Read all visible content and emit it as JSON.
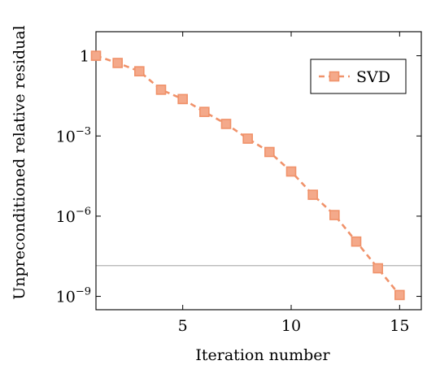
{
  "chart_data": {
    "type": "line",
    "title": "",
    "xlabel": "Iteration number",
    "ylabel": "Unpreconditioned relative residual",
    "xlim": [
      1,
      16
    ],
    "ylim_log10": [
      -9.5,
      0.9
    ],
    "yscale": "log",
    "x_ticks": [
      5,
      10,
      15
    ],
    "x_tick_labels": [
      "5",
      "10",
      "15"
    ],
    "y_ticks_log10": [
      0,
      -3,
      -6,
      -9
    ],
    "y_tick_labels": [
      {
        "base": "1",
        "exp": ""
      },
      {
        "base": "10",
        "exp": "−3"
      },
      {
        "base": "10",
        "exp": "−6"
      },
      {
        "base": "10",
        "exp": "−9"
      }
    ],
    "reference_line_log10": -7.85,
    "legend_position": "top-right",
    "series": [
      {
        "name": "SVD",
        "color": "#f0926a",
        "marker": "square",
        "line_style": "dashed",
        "x": [
          1,
          2,
          3,
          4,
          5,
          6,
          7,
          8,
          9,
          10,
          11,
          12,
          13,
          14,
          15
        ],
        "y_log10": [
          0.0,
          -0.27,
          -0.58,
          -1.27,
          -1.62,
          -2.1,
          -2.55,
          -3.1,
          -3.6,
          -4.33,
          -5.2,
          -5.96,
          -6.95,
          -7.95,
          -8.95
        ]
      }
    ]
  }
}
